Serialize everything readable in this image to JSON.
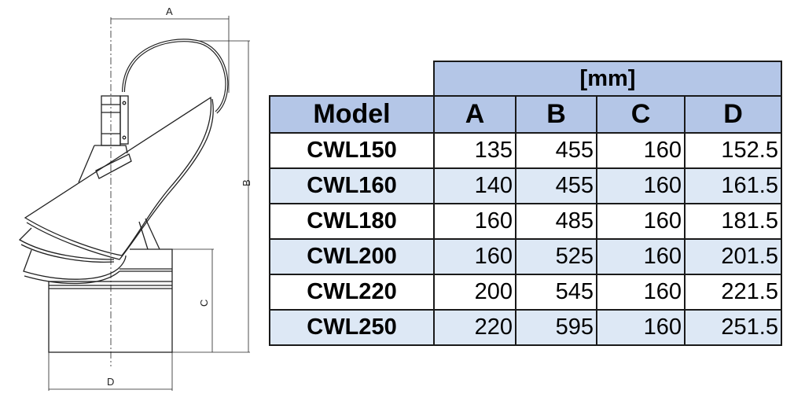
{
  "drawing": {
    "dimension_labels": {
      "a": "A",
      "b": "B",
      "c": "C",
      "d": "D"
    }
  },
  "table": {
    "unit_header": "[mm]",
    "columns": [
      "Model",
      "A",
      "B",
      "C",
      "D"
    ],
    "rows": [
      [
        "CWL150",
        "135",
        "455",
        "160",
        "152.5"
      ],
      [
        "CWL160",
        "140",
        "455",
        "160",
        "161.5"
      ],
      [
        "CWL180",
        "160",
        "485",
        "160",
        "181.5"
      ],
      [
        "CWL200",
        "160",
        "525",
        "160",
        "201.5"
      ],
      [
        "CWL220",
        "200",
        "545",
        "160",
        "221.5"
      ],
      [
        "CWL250",
        "220",
        "595",
        "160",
        "251.5"
      ]
    ],
    "colors": {
      "header": "#b4c6e7",
      "alt_row": "#dde8f5",
      "border": "#1a1a1a"
    }
  }
}
